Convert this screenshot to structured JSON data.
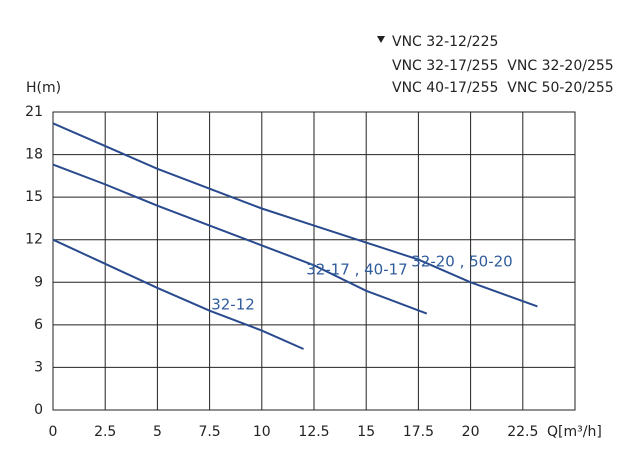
{
  "chart_data": {
    "type": "line",
    "y_label": "H(m)",
    "x_label": "Q[m³/h]",
    "legend_lines": [
      "VNC 32-12/225",
      "VNC 32-17/255  VNC 32-20/255",
      "VNC 40-17/255  VNC 50-20/255"
    ],
    "xlim": [
      0,
      25
    ],
    "xticks": [
      0,
      2.5,
      5,
      7.5,
      10,
      12.5,
      15,
      17.5,
      20,
      22.5
    ],
    "ylim": [
      0,
      21
    ],
    "yticks": [
      0,
      3,
      6,
      9,
      12,
      15,
      18,
      21
    ],
    "grid": true,
    "series": [
      {
        "name": "32-12",
        "color": "#2a4a8e",
        "x": [
          0,
          2.5,
          5,
          7.5,
          10,
          12
        ],
        "values": [
          12,
          10.3,
          8.6,
          7.0,
          5.6,
          4.3
        ]
      },
      {
        "name": "32-17 , 40-17",
        "color": "#2a4a8e",
        "x": [
          0,
          2.5,
          5,
          7.5,
          10,
          12.5,
          15,
          17.9
        ],
        "values": [
          17.3,
          15.9,
          14.4,
          13.0,
          11.6,
          10.2,
          8.4,
          6.8
        ]
      },
      {
        "name": "32-20 , 50-20",
        "color": "#2a4a8e",
        "x": [
          0,
          2.5,
          5,
          7.5,
          10,
          12.5,
          15,
          17.5,
          20,
          23.2
        ],
        "values": [
          20.2,
          18.6,
          17.0,
          15.6,
          14.2,
          13.0,
          11.8,
          10.6,
          9.0,
          7.3
        ]
      }
    ]
  }
}
